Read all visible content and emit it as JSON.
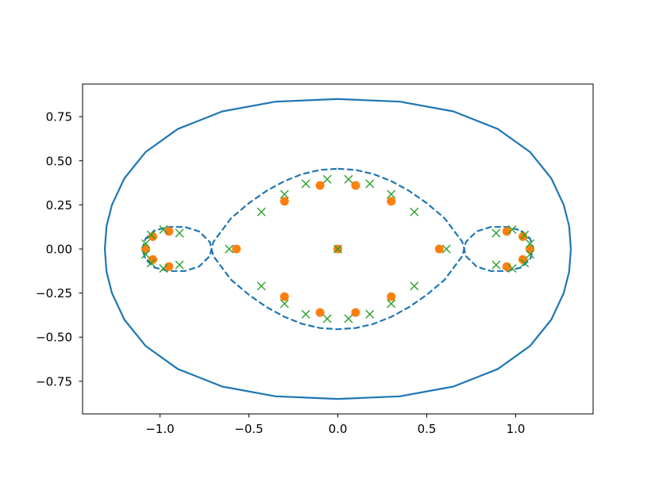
{
  "chart_data": {
    "type": "scatter",
    "title": "",
    "xlabel": "",
    "ylabel": "",
    "xlim": [
      -1.435,
      1.435
    ],
    "ylim": [
      -0.935,
      0.935
    ],
    "grid": false,
    "xticks": [
      -1.0,
      -0.5,
      0.0,
      0.5,
      1.0
    ],
    "xtick_labels": [
      "−1.0",
      "−0.5",
      "0.0",
      "0.5",
      "1.0"
    ],
    "yticks": [
      -0.75,
      -0.5,
      -0.25,
      0.0,
      0.25,
      0.5,
      0.75
    ],
    "ytick_labels": [
      "−0.75",
      "−0.50",
      "−0.25",
      "0.00",
      "0.25",
      "0.50",
      "0.75"
    ],
    "colors": {
      "curves": "#1f77b4",
      "circles": "#ff7f0e",
      "crosses": "#2ca02c"
    },
    "series": [
      {
        "kind": "solid-curve",
        "points": [
          [
            1.31,
            0.0
          ],
          [
            1.3,
            0.13
          ],
          [
            1.27,
            0.25
          ],
          [
            1.2,
            0.4
          ],
          [
            1.08,
            0.55
          ],
          [
            0.9,
            0.68
          ],
          [
            0.65,
            0.78
          ],
          [
            0.35,
            0.835
          ],
          [
            0.0,
            0.85
          ],
          [
            -0.35,
            0.835
          ],
          [
            -0.65,
            0.78
          ],
          [
            -0.9,
            0.68
          ],
          [
            -1.08,
            0.55
          ],
          [
            -1.2,
            0.4
          ],
          [
            -1.27,
            0.25
          ],
          [
            -1.3,
            0.13
          ],
          [
            -1.31,
            0.0
          ],
          [
            -1.3,
            -0.13
          ],
          [
            -1.27,
            -0.25
          ],
          [
            -1.2,
            -0.4
          ],
          [
            -1.08,
            -0.55
          ],
          [
            -0.9,
            -0.68
          ],
          [
            -0.65,
            -0.78
          ],
          [
            -0.35,
            -0.835
          ],
          [
            0.0,
            -0.85
          ],
          [
            0.35,
            -0.835
          ],
          [
            0.65,
            -0.78
          ],
          [
            0.9,
            -0.68
          ],
          [
            1.08,
            -0.55
          ],
          [
            1.2,
            -0.4
          ],
          [
            1.27,
            -0.25
          ],
          [
            1.3,
            -0.13
          ],
          [
            1.31,
            0.0
          ]
        ]
      },
      {
        "kind": "dashed-curve",
        "points": [
          [
            0.0,
            0.455
          ],
          [
            0.1,
            0.448
          ],
          [
            0.2,
            0.425
          ],
          [
            0.3,
            0.385
          ],
          [
            0.4,
            0.33
          ],
          [
            0.5,
            0.26
          ],
          [
            0.6,
            0.175
          ],
          [
            0.7,
            0.04
          ],
          [
            0.71,
            0.0
          ],
          [
            0.72,
            -0.04
          ],
          [
            0.78,
            -0.1
          ],
          [
            0.86,
            -0.125
          ],
          [
            0.95,
            -0.125
          ],
          [
            1.03,
            -0.105
          ],
          [
            1.08,
            -0.06
          ],
          [
            1.1,
            0.0
          ],
          [
            1.08,
            0.06
          ],
          [
            1.03,
            0.105
          ],
          [
            0.95,
            0.125
          ],
          [
            0.86,
            0.125
          ],
          [
            0.78,
            0.1
          ],
          [
            0.72,
            0.04
          ],
          [
            0.71,
            0.0
          ],
          [
            0.7,
            -0.04
          ],
          [
            0.6,
            -0.175
          ],
          [
            0.5,
            -0.26
          ],
          [
            0.4,
            -0.33
          ],
          [
            0.3,
            -0.385
          ],
          [
            0.2,
            -0.425
          ],
          [
            0.1,
            -0.448
          ],
          [
            0.0,
            -0.455
          ],
          [
            -0.1,
            -0.448
          ],
          [
            -0.2,
            -0.425
          ],
          [
            -0.3,
            -0.385
          ],
          [
            -0.4,
            -0.33
          ],
          [
            -0.5,
            -0.26
          ],
          [
            -0.6,
            -0.175
          ],
          [
            -0.7,
            -0.04
          ],
          [
            -0.71,
            0.0
          ],
          [
            -0.72,
            0.04
          ],
          [
            -0.78,
            0.1
          ],
          [
            -0.86,
            0.125
          ],
          [
            -0.95,
            0.125
          ],
          [
            -1.03,
            0.105
          ],
          [
            -1.08,
            0.06
          ],
          [
            -1.1,
            0.0
          ],
          [
            -1.08,
            -0.06
          ],
          [
            -1.03,
            -0.105
          ],
          [
            -0.95,
            -0.125
          ],
          [
            -0.86,
            -0.125
          ],
          [
            -0.78,
            -0.1
          ],
          [
            -0.72,
            -0.04
          ],
          [
            -0.71,
            0.0
          ],
          [
            -0.7,
            0.04
          ],
          [
            -0.6,
            0.175
          ],
          [
            -0.5,
            0.26
          ],
          [
            -0.4,
            0.33
          ],
          [
            -0.3,
            0.385
          ],
          [
            -0.2,
            0.425
          ],
          [
            -0.1,
            0.448
          ],
          [
            0.0,
            0.455
          ]
        ]
      },
      {
        "kind": "circle-markers",
        "points": [
          [
            0.0,
            0.0
          ],
          [
            -0.57,
            0.0
          ],
          [
            0.57,
            0.0
          ],
          [
            -0.3,
            0.27
          ],
          [
            -0.3,
            -0.27
          ],
          [
            0.3,
            0.27
          ],
          [
            0.3,
            -0.27
          ],
          [
            -0.1,
            0.36
          ],
          [
            0.1,
            0.36
          ],
          [
            -0.1,
            -0.36
          ],
          [
            0.1,
            -0.36
          ],
          [
            -0.95,
            0.1
          ],
          [
            -0.95,
            -0.1
          ],
          [
            0.95,
            0.1
          ],
          [
            0.95,
            -0.1
          ],
          [
            -1.04,
            0.07
          ],
          [
            -1.04,
            -0.06
          ],
          [
            1.04,
            0.07
          ],
          [
            1.04,
            -0.06
          ],
          [
            -1.08,
            0.0
          ],
          [
            1.08,
            0.0
          ]
        ]
      },
      {
        "kind": "cross-markers",
        "points": [
          [
            0.0,
            0.0
          ],
          [
            -0.61,
            0.0
          ],
          [
            0.61,
            0.0
          ],
          [
            -0.43,
            0.21
          ],
          [
            -0.43,
            -0.21
          ],
          [
            0.43,
            0.21
          ],
          [
            0.43,
            -0.21
          ],
          [
            -0.3,
            0.31
          ],
          [
            -0.3,
            -0.31
          ],
          [
            0.3,
            0.31
          ],
          [
            0.3,
            -0.31
          ],
          [
            -0.18,
            0.37
          ],
          [
            -0.18,
            -0.37
          ],
          [
            0.18,
            0.37
          ],
          [
            0.18,
            -0.37
          ],
          [
            -0.06,
            0.395
          ],
          [
            -0.06,
            -0.395
          ],
          [
            0.06,
            0.395
          ],
          [
            0.06,
            -0.395
          ],
          [
            -0.89,
            0.09
          ],
          [
            -0.89,
            -0.09
          ],
          [
            0.89,
            0.09
          ],
          [
            0.89,
            -0.09
          ],
          [
            -0.98,
            0.11
          ],
          [
            -0.98,
            -0.11
          ],
          [
            0.98,
            0.11
          ],
          [
            0.98,
            -0.11
          ],
          [
            -1.05,
            0.08
          ],
          [
            -1.05,
            -0.08
          ],
          [
            1.05,
            0.08
          ],
          [
            1.05,
            -0.08
          ],
          [
            -1.08,
            0.03
          ],
          [
            -1.08,
            -0.03
          ],
          [
            1.08,
            0.03
          ],
          [
            1.08,
            -0.03
          ]
        ]
      }
    ]
  }
}
